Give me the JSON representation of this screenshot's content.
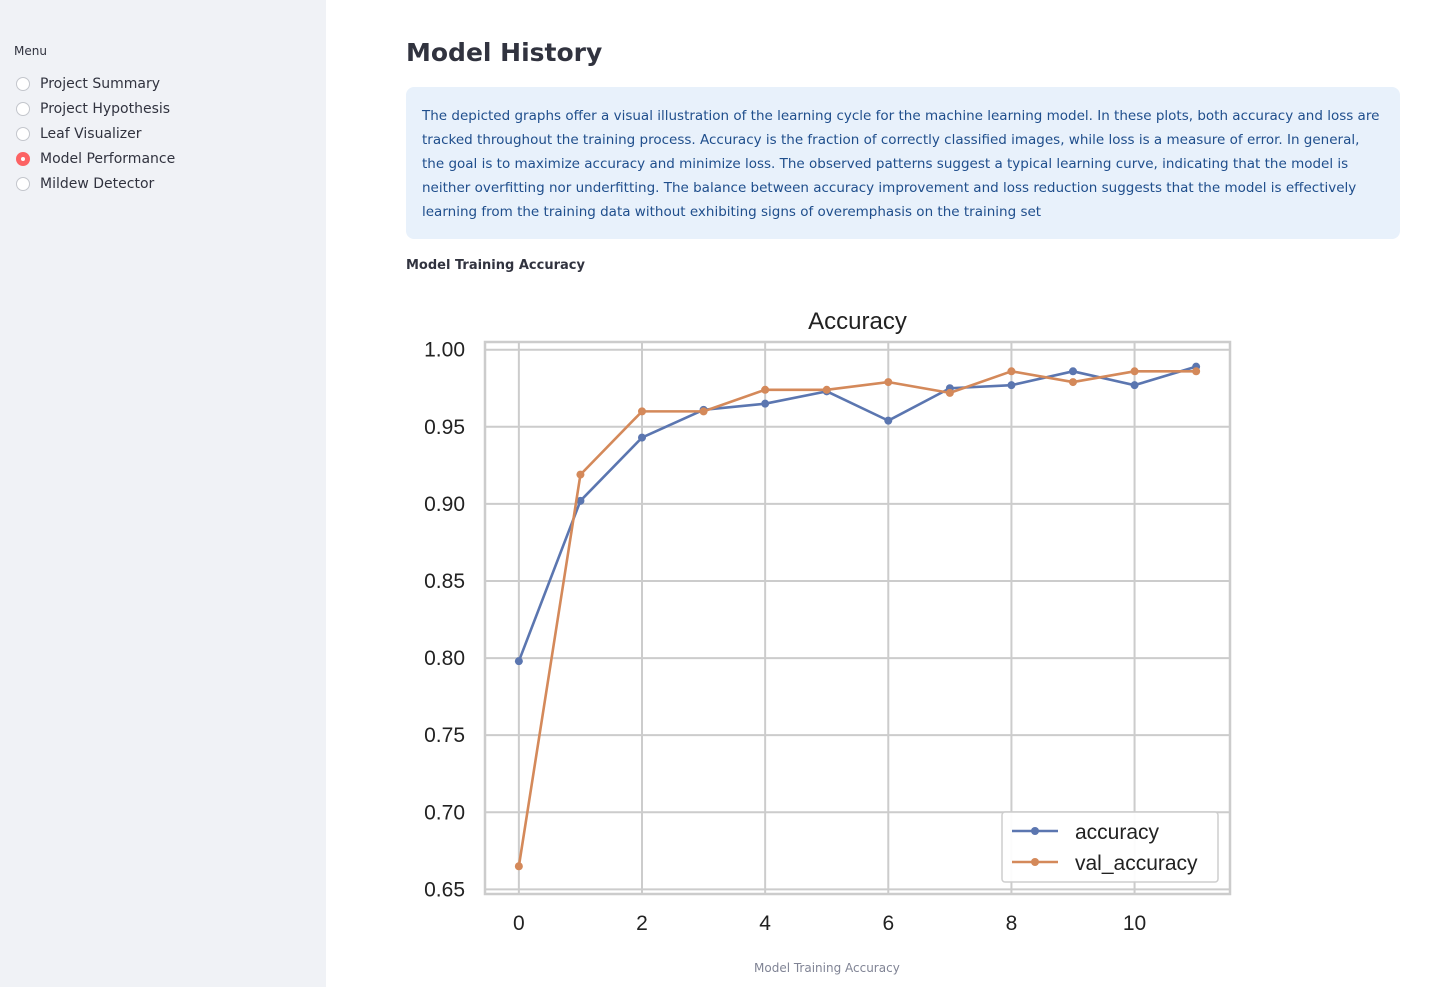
{
  "sidebar": {
    "menu_label": "Menu",
    "items": [
      {
        "label": "Project Summary",
        "selected": false
      },
      {
        "label": "Project Hypothesis",
        "selected": false
      },
      {
        "label": "Leaf Visualizer",
        "selected": false
      },
      {
        "label": "Model Performance",
        "selected": true
      },
      {
        "label": "Mildew Detector",
        "selected": false
      }
    ]
  },
  "main": {
    "title": "Model History",
    "info_text": "The depicted graphs offer a visual illustration of the learning cycle for the machine learning model. In these plots, both accuracy and loss are tracked throughout the training process. Accuracy is the fraction of correctly classified images, while loss is a measure of error. In general, the goal is to maximize accuracy and minimize loss. The observed patterns suggest a typical learning curve, indicating that the model is neither overfitting nor underfitting. The balance between accuracy improvement and loss reduction suggests that the model is effectively learning from the training data without exhibiting signs of overemphasis on the training set",
    "section_caption": "Model Training Accuracy",
    "image_caption": "Model Training Accuracy"
  },
  "colors": {
    "accent": "#ff4b4b",
    "info_bg": "#e8f1fb",
    "info_text": "#1f4e8c",
    "sidebar_bg": "#f0f2f6"
  },
  "chart_data": {
    "type": "line",
    "title": "Accuracy",
    "xlabel": "",
    "ylabel": "",
    "x": [
      0,
      1,
      2,
      3,
      4,
      5,
      6,
      7,
      8,
      9,
      10,
      11
    ],
    "xlim": [
      -0.55,
      11.55
    ],
    "ylim": [
      0.647,
      1.005
    ],
    "xticks": [
      0,
      2,
      4,
      6,
      8,
      10
    ],
    "yticks": [
      0.65,
      0.7,
      0.75,
      0.8,
      0.85,
      0.9,
      0.95,
      1.0
    ],
    "grid": true,
    "legend_position": "lower-right",
    "series": [
      {
        "name": "accuracy",
        "color": "#5b76b0",
        "values": [
          0.798,
          0.902,
          0.943,
          0.961,
          0.965,
          0.973,
          0.954,
          0.975,
          0.977,
          0.986,
          0.977,
          0.989
        ]
      },
      {
        "name": "val_accuracy",
        "color": "#d4895a",
        "values": [
          0.665,
          0.919,
          0.96,
          0.96,
          0.974,
          0.974,
          0.979,
          0.972,
          0.986,
          0.979,
          0.986,
          0.986
        ]
      }
    ]
  }
}
